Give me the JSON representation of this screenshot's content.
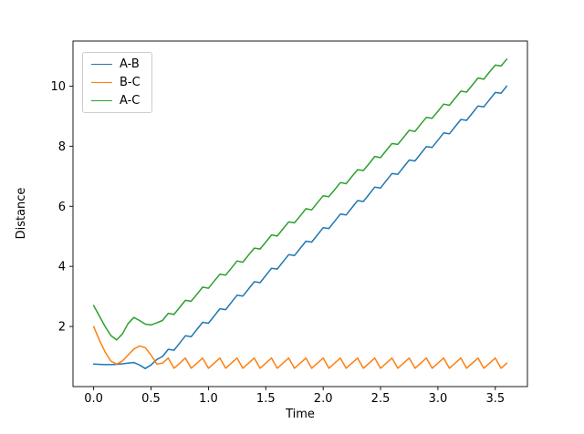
{
  "chart_data": {
    "type": "line",
    "title": "",
    "xlabel": "Time",
    "ylabel": "Distance",
    "grid": false,
    "legend_position": "upper-left",
    "xlim": [
      -0.18,
      3.78
    ],
    "ylim": [
      0.0,
      11.5
    ],
    "xtick_values": [
      0.0,
      0.5,
      1.0,
      1.5,
      2.0,
      2.5,
      3.0,
      3.5
    ],
    "xtick_labels": [
      "0.0",
      "0.5",
      "1.0",
      "1.5",
      "2.0",
      "2.5",
      "3.0",
      "3.5"
    ],
    "ytick_values": [
      2,
      4,
      6,
      8,
      10
    ],
    "ytick_labels": [
      "2",
      "4",
      "6",
      "8",
      "10"
    ],
    "x": [
      0,
      0.05,
      0.1,
      0.15,
      0.2,
      0.25,
      0.3,
      0.35,
      0.4,
      0.45,
      0.5,
      0.55,
      0.6,
      0.65,
      0.7,
      0.75,
      0.8,
      0.85,
      0.9,
      0.95,
      1,
      1.05,
      1.1,
      1.15,
      1.2,
      1.25,
      1.3,
      1.35,
      1.4,
      1.45,
      1.5,
      1.55,
      1.6,
      1.65,
      1.7,
      1.75,
      1.8,
      1.85,
      1.9,
      1.95,
      2,
      2.05,
      2.1,
      2.15,
      2.2,
      2.25,
      2.3,
      2.35,
      2.4,
      2.45,
      2.5,
      2.55,
      2.6,
      2.65,
      2.7,
      2.75,
      2.8,
      2.85,
      2.9,
      2.95,
      3,
      3.05,
      3.1,
      3.15,
      3.2,
      3.25,
      3.3,
      3.35,
      3.4,
      3.45,
      3.5,
      3.55,
      3.6
    ],
    "series": [
      {
        "name": "A-B",
        "color": "#1f77b4",
        "values": [
          0.75,
          0.74,
          0.73,
          0.73,
          0.74,
          0.76,
          0.78,
          0.8,
          0.72,
          0.6,
          0.72,
          0.9,
          1.0,
          1.24,
          1.21,
          1.45,
          1.69,
          1.66,
          1.9,
          2.14,
          2.11,
          2.35,
          2.59,
          2.56,
          2.8,
          3.04,
          3.01,
          3.25,
          3.49,
          3.46,
          3.7,
          3.94,
          3.91,
          4.15,
          4.39,
          4.36,
          4.6,
          4.84,
          4.81,
          5.05,
          5.29,
          5.26,
          5.5,
          5.74,
          5.71,
          5.95,
          6.19,
          6.16,
          6.4,
          6.64,
          6.61,
          6.85,
          7.09,
          7.06,
          7.3,
          7.54,
          7.51,
          7.75,
          7.99,
          7.96,
          8.2,
          8.44,
          8.41,
          8.65,
          8.89,
          8.86,
          9.1,
          9.34,
          9.31,
          9.55,
          9.79,
          9.76,
          10.0
        ]
      },
      {
        "name": "B-C",
        "color": "#ff7f0e",
        "values": [
          2.0,
          1.55,
          1.15,
          0.85,
          0.75,
          0.85,
          1.05,
          1.25,
          1.35,
          1.3,
          1.05,
          0.75,
          0.78,
          0.95,
          0.61,
          0.78,
          0.95,
          0.61,
          0.78,
          0.95,
          0.61,
          0.78,
          0.95,
          0.61,
          0.78,
          0.95,
          0.61,
          0.78,
          0.95,
          0.61,
          0.78,
          0.95,
          0.61,
          0.78,
          0.95,
          0.61,
          0.78,
          0.95,
          0.61,
          0.78,
          0.95,
          0.61,
          0.78,
          0.95,
          0.61,
          0.78,
          0.95,
          0.61,
          0.78,
          0.95,
          0.61,
          0.78,
          0.95,
          0.61,
          0.78,
          0.95,
          0.61,
          0.78,
          0.95,
          0.61,
          0.78,
          0.95,
          0.61,
          0.78,
          0.95,
          0.61,
          0.78,
          0.95,
          0.61,
          0.78,
          0.95,
          0.61,
          0.78
        ]
      },
      {
        "name": "A-C",
        "color": "#2ca02c",
        "values": [
          2.7,
          2.35,
          2.0,
          1.7,
          1.55,
          1.75,
          2.1,
          2.3,
          2.2,
          2.08,
          2.05,
          2.12,
          2.2,
          2.44,
          2.4,
          2.64,
          2.87,
          2.84,
          3.07,
          3.31,
          3.27,
          3.51,
          3.74,
          3.71,
          3.94,
          4.18,
          4.14,
          4.38,
          4.61,
          4.58,
          4.81,
          5.05,
          5.01,
          5.25,
          5.48,
          5.45,
          5.68,
          5.92,
          5.88,
          6.12,
          6.35,
          6.32,
          6.55,
          6.79,
          6.75,
          6.99,
          7.22,
          7.19,
          7.42,
          7.66,
          7.62,
          7.86,
          8.09,
          8.06,
          8.29,
          8.53,
          8.49,
          8.73,
          8.96,
          8.93,
          9.16,
          9.4,
          9.36,
          9.6,
          9.83,
          9.8,
          10.03,
          10.27,
          10.23,
          10.47,
          10.7,
          10.67,
          10.9
        ]
      }
    ]
  }
}
